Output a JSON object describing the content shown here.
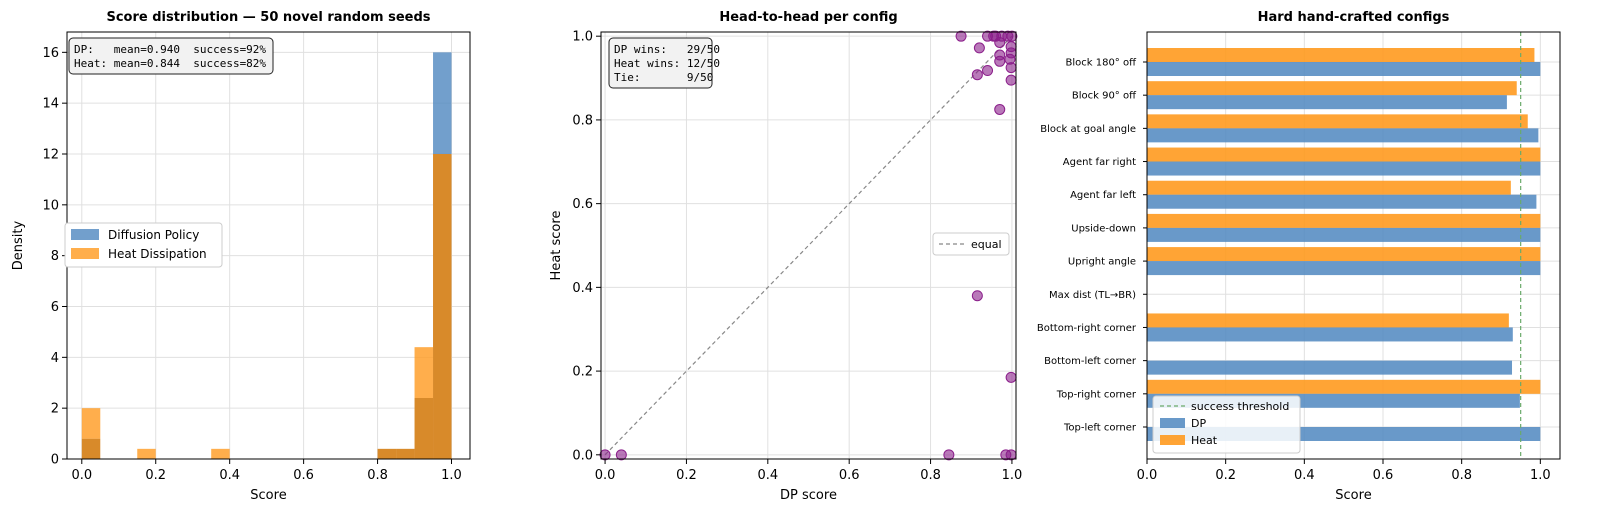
{
  "colors": {
    "dp": "#4f87bf",
    "heat": "#ff9a1f",
    "overlap": "#d88a2a",
    "scatter": "#8b1f8b",
    "grid": "#e0e0e0",
    "threshold": "#6aaa6a"
  },
  "chart_data": [
    {
      "type": "bar",
      "subtype": "histogram-overlay",
      "title": "Score distribution — 50 novel random seeds",
      "xlabel": "Score",
      "ylabel": "Density",
      "xlim": [
        -0.04,
        1.05
      ],
      "ylim": [
        0,
        16.8
      ],
      "xticks": [
        0.0,
        0.2,
        0.4,
        0.6,
        0.8,
        1.0
      ],
      "xtick_labels": [
        "0.0",
        "0.2",
        "0.4",
        "0.6",
        "0.8",
        "1.0"
      ],
      "yticks": [
        0,
        2,
        4,
        6,
        8,
        10,
        12,
        14,
        16
      ],
      "ytick_labels": [
        "0",
        "2",
        "4",
        "6",
        "8",
        "10",
        "12",
        "14",
        "16"
      ],
      "grid": true,
      "bin_edges": [
        0.0,
        0.05,
        0.1,
        0.15,
        0.2,
        0.25,
        0.3,
        0.35,
        0.4,
        0.45,
        0.5,
        0.55,
        0.6,
        0.65,
        0.7,
        0.75,
        0.8,
        0.85,
        0.9,
        0.95,
        1.0
      ],
      "series": [
        {
          "name": "Diffusion Policy",
          "values": [
            0.8,
            0,
            0,
            0,
            0,
            0,
            0,
            0,
            0,
            0,
            0,
            0,
            0,
            0,
            0,
            0,
            0.4,
            0.4,
            2.4,
            16.0
          ]
        },
        {
          "name": "Heat Dissipation",
          "values": [
            2.0,
            0,
            0,
            0.4,
            0,
            0,
            0,
            0.4,
            0,
            0,
            0,
            0,
            0,
            0,
            0,
            0,
            0.4,
            0.4,
            4.4,
            12.0
          ]
        }
      ],
      "legend_position": "center-left",
      "info_lines": [
        "DP:   mean=0.940  success=92%",
        "Heat: mean=0.844  success=82%"
      ]
    },
    {
      "type": "scatter",
      "title": "Head-to-head per config",
      "xlabel": "DP score",
      "ylabel": "Heat score",
      "xlim": [
        -0.01,
        1.01
      ],
      "ylim": [
        -0.01,
        1.01
      ],
      "xticks": [
        0.0,
        0.2,
        0.4,
        0.6,
        0.8,
        1.0
      ],
      "xtick_labels": [
        "0.0",
        "0.2",
        "0.4",
        "0.6",
        "0.8",
        "1.0"
      ],
      "yticks": [
        0.0,
        0.2,
        0.4,
        0.6,
        0.8,
        1.0
      ],
      "ytick_labels": [
        "0.0",
        "0.2",
        "0.4",
        "0.6",
        "0.8",
        "1.0"
      ],
      "grid": true,
      "points": [
        {
          "x": 0.0,
          "y": 0.0
        },
        {
          "x": 0.04,
          "y": 0.0
        },
        {
          "x": 0.845,
          "y": 0.0
        },
        {
          "x": 0.985,
          "y": 0.0
        },
        {
          "x": 0.998,
          "y": 0.0
        },
        {
          "x": 0.998,
          "y": 0.185
        },
        {
          "x": 0.915,
          "y": 0.38
        },
        {
          "x": 0.97,
          "y": 0.825
        },
        {
          "x": 0.998,
          "y": 0.895
        },
        {
          "x": 0.915,
          "y": 0.908
        },
        {
          "x": 0.94,
          "y": 0.918
        },
        {
          "x": 0.998,
          "y": 0.925
        },
        {
          "x": 0.97,
          "y": 0.94
        },
        {
          "x": 0.995,
          "y": 0.945
        },
        {
          "x": 0.97,
          "y": 0.955
        },
        {
          "x": 0.998,
          "y": 0.96
        },
        {
          "x": 0.998,
          "y": 0.975
        },
        {
          "x": 0.92,
          "y": 0.972
        },
        {
          "x": 0.97,
          "y": 0.985
        },
        {
          "x": 0.875,
          "y": 1.0
        },
        {
          "x": 0.94,
          "y": 1.0
        },
        {
          "x": 0.955,
          "y": 1.0
        },
        {
          "x": 0.96,
          "y": 1.0
        },
        {
          "x": 0.975,
          "y": 1.0
        },
        {
          "x": 0.99,
          "y": 1.0
        },
        {
          "x": 1.0,
          "y": 1.0
        }
      ],
      "reference_line": {
        "label": "equal",
        "from": [
          0,
          0
        ],
        "to": [
          1,
          1
        ]
      },
      "legend_position": "center-right",
      "info_lines": [
        "DP wins:   29/50",
        "Heat wins: 12/50",
        "Tie:       9/50"
      ]
    },
    {
      "type": "bar",
      "orientation": "horizontal",
      "title": "Hard hand-crafted configs",
      "xlabel": "Score",
      "xlim": [
        0,
        1.05
      ],
      "xticks": [
        0.0,
        0.2,
        0.4,
        0.6,
        0.8,
        1.0
      ],
      "xtick_labels": [
        "0.0",
        "0.2",
        "0.4",
        "0.6",
        "0.8",
        "1.0"
      ],
      "grid": true,
      "categories": [
        "Block 180° off",
        "Block 90° off",
        "Block at goal angle",
        "Agent far right",
        "Agent far left",
        "Upside-down",
        "Upright angle",
        "Max dist (TL→BR)",
        "Bottom-right corner",
        "Bottom-left corner",
        "Top-right corner",
        "Top-left corner"
      ],
      "series": [
        {
          "name": "DP",
          "values": [
            1.0,
            0.915,
            0.995,
            1.0,
            0.99,
            1.0,
            1.0,
            0.0,
            0.93,
            0.928,
            0.948,
            1.0
          ]
        },
        {
          "name": "Heat",
          "values": [
            0.985,
            0.94,
            0.968,
            1.0,
            0.925,
            1.0,
            1.0,
            0.0,
            0.92,
            0.0,
            1.0,
            0.0
          ]
        }
      ],
      "threshold": {
        "label": "success threshold",
        "value": 0.95
      },
      "legend_position": "lower-left"
    }
  ]
}
